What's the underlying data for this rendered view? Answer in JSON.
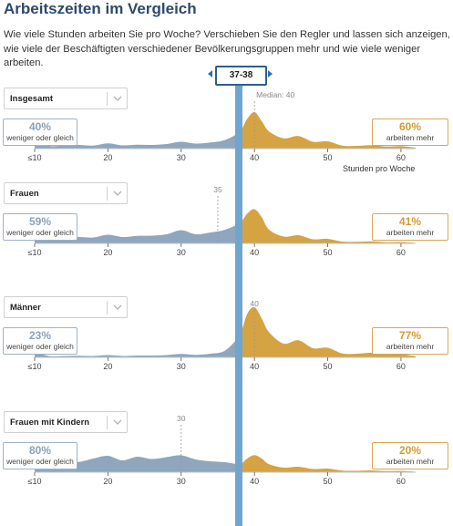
{
  "header": {
    "title": "Arbeitszeiten im Vergleich",
    "intro": "Wie viele Stunden arbeiten Sie pro Woche? Verschieben Sie den Regler und lassen sich anzeigen, wie viele der Beschäftigten verschiedener Bevölkerungsgruppen mehr und wie viele weniger arbeiten."
  },
  "slider": {
    "label": "37-38",
    "value_hours": 37.5
  },
  "x_axis": {
    "ticks": [
      "≤10",
      "20",
      "30",
      "40",
      "50",
      "60"
    ],
    "tick_values": [
      10,
      20,
      30,
      40,
      50,
      60
    ],
    "title": "Stunden pro Woche"
  },
  "colors": {
    "less": "#8fa6bc",
    "more": "#d6a342",
    "slider": "#6fa6cf",
    "title": "#2e4a6b"
  },
  "panels": [
    {
      "group": "Insgesamt",
      "less_pct": "40%",
      "less_label": "weniger oder gleich",
      "more_pct": "60%",
      "more_label": "arbeiten mehr",
      "median_label": "Median: 40",
      "median_value": 40
    },
    {
      "group": "Frauen",
      "less_pct": "59%",
      "less_label": "weniger oder gleich",
      "more_pct": "41%",
      "more_label": "arbeiten mehr",
      "median_label": "35",
      "median_value": 35
    },
    {
      "group": "Männer",
      "less_pct": "23%",
      "less_label": "weniger oder gleich",
      "more_pct": "77%",
      "more_label": "arbeiten mehr",
      "median_label": "40",
      "median_value": 40
    },
    {
      "group": "Frauen mit Kindern",
      "less_pct": "80%",
      "less_label": "weniger oder gleich",
      "more_pct": "20%",
      "more_label": "arbeiten mehr",
      "median_label": "30",
      "median_value": 30
    }
  ],
  "chart_data": [
    {
      "type": "area",
      "title": "Insgesamt",
      "x": [
        10,
        12,
        14,
        16,
        18,
        20,
        22,
        24,
        26,
        28,
        30,
        32,
        34,
        36,
        38,
        39,
        40,
        41,
        42,
        44,
        46,
        48,
        50,
        52,
        54,
        56,
        58,
        60,
        62
      ],
      "y": [
        4,
        1.2,
        1.4,
        1.6,
        1.3,
        2.3,
        1.4,
        1.7,
        1.6,
        2.0,
        3.0,
        2.2,
        2.7,
        3.8,
        7.5,
        13,
        16,
        12,
        7.5,
        4.5,
        5.5,
        3.0,
        3.2,
        1.3,
        1.2,
        1.5,
        0.9,
        1.1,
        0.4
      ],
      "xlim": [
        10,
        62
      ]
    },
    {
      "type": "area",
      "title": "Frauen",
      "x": [
        10,
        12,
        14,
        16,
        18,
        20,
        22,
        24,
        26,
        28,
        30,
        32,
        34,
        36,
        38,
        39,
        40,
        41,
        42,
        44,
        46,
        48,
        50,
        52,
        54,
        56,
        58,
        60,
        62
      ],
      "y": [
        8,
        2.6,
        2.4,
        2.8,
        2.6,
        3.8,
        2.8,
        3.3,
        3.4,
        4.0,
        5.8,
        4.0,
        4.8,
        6.0,
        9.0,
        13,
        15,
        11.5,
        6.0,
        3.0,
        3.6,
        1.8,
        2.0,
        0.8,
        0.7,
        0.9,
        0.5,
        0.6,
        0.2
      ],
      "xlim": [
        10,
        62
      ]
    },
    {
      "type": "area",
      "title": "Männer",
      "x": [
        10,
        12,
        14,
        16,
        18,
        20,
        22,
        24,
        26,
        28,
        30,
        32,
        34,
        36,
        38,
        39,
        40,
        41,
        42,
        44,
        46,
        48,
        50,
        52,
        54,
        56,
        58,
        60,
        62
      ],
      "y": [
        2.4,
        0.6,
        0.6,
        0.7,
        0.6,
        1.0,
        0.6,
        0.8,
        0.8,
        1.0,
        1.5,
        1.1,
        1.6,
        3.0,
        10,
        19,
        22,
        17,
        11,
        6.0,
        7.5,
        4.0,
        4.2,
        1.7,
        1.6,
        2.0,
        1.2,
        1.4,
        0.5
      ],
      "xlim": [
        10,
        62
      ]
    },
    {
      "type": "area",
      "title": "Frauen mit Kindern",
      "x": [
        10,
        12,
        14,
        16,
        18,
        20,
        22,
        24,
        26,
        28,
        30,
        32,
        34,
        36,
        38,
        39,
        40,
        41,
        42,
        44,
        46,
        48,
        50,
        52,
        54,
        56,
        58,
        60,
        62
      ],
      "y": [
        7,
        4.2,
        5.0,
        4.5,
        6.0,
        7.2,
        5.2,
        6.8,
        5.8,
        6.6,
        7.4,
        5.6,
        4.8,
        4.4,
        3.6,
        6.0,
        7.5,
        6.0,
        3.5,
        2.0,
        2.4,
        1.4,
        1.6,
        0.7,
        0.6,
        0.8,
        0.5,
        0.6,
        0.2
      ],
      "xlim": [
        10,
        62
      ]
    }
  ]
}
